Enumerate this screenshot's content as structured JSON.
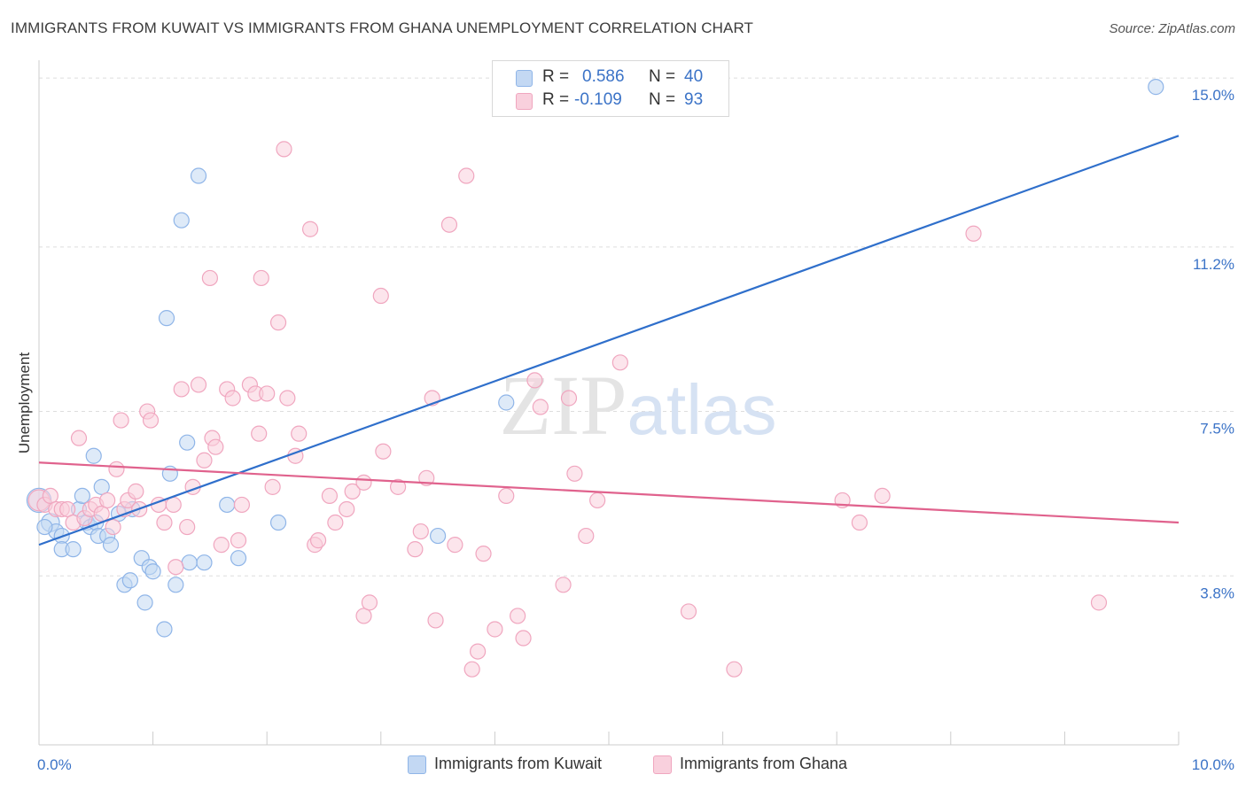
{
  "chart_data": {
    "type": "scatter",
    "title": "IMMIGRANTS FROM KUWAIT VS IMMIGRANTS FROM GHANA UNEMPLOYMENT CORRELATION CHART",
    "source": "Source: ZipAtlas.com",
    "ylabel": "Unemployment",
    "xlabel": "",
    "xlim": [
      0,
      10
    ],
    "ylim": [
      0,
      15.4
    ],
    "x_tick_labels": [
      "0.0%",
      "10.0%"
    ],
    "y_ticks": [
      3.8,
      7.5,
      11.2,
      15.0
    ],
    "y_tick_labels": [
      "3.8%",
      "7.5%",
      "11.2%",
      "15.0%"
    ],
    "watermark": "ZIPatlas",
    "legend": {
      "rows": [
        {
          "r_key": "R =",
          "r_value": "0.586",
          "n_key": "N =",
          "n_value": "40"
        },
        {
          "r_key": "R =",
          "r_value": "-0.109",
          "n_key": "N =",
          "n_value": "93"
        }
      ]
    },
    "series": [
      {
        "name": "Immigrants from Kuwait",
        "color": "#8fb5e8",
        "fill": "#c3d8f3",
        "line_color": "#2f6fcb",
        "trend": {
          "x": [
            0,
            10
          ],
          "y": [
            4.5,
            13.7
          ]
        },
        "points": [
          [
            0.0,
            5.5,
            16
          ],
          [
            0.1,
            5.0,
            12
          ],
          [
            0.15,
            4.8,
            10
          ],
          [
            0.2,
            4.7,
            10
          ],
          [
            0.2,
            4.4,
            10
          ],
          [
            0.3,
            4.4,
            10
          ],
          [
            0.35,
            5.3,
            10
          ],
          [
            0.38,
            5.6,
            10
          ],
          [
            0.42,
            5.0,
            10
          ],
          [
            0.45,
            4.9,
            10
          ],
          [
            0.48,
            6.5,
            10
          ],
          [
            0.5,
            5.0,
            10
          ],
          [
            0.52,
            4.7,
            10
          ],
          [
            0.55,
            5.8,
            10
          ],
          [
            0.6,
            4.7,
            10
          ],
          [
            0.63,
            4.5,
            10
          ],
          [
            0.7,
            5.2,
            10
          ],
          [
            0.75,
            3.6,
            10
          ],
          [
            0.8,
            3.7,
            10
          ],
          [
            0.82,
            5.3,
            10
          ],
          [
            0.9,
            4.2,
            10
          ],
          [
            0.93,
            3.2,
            10
          ],
          [
            0.97,
            4.0,
            10
          ],
          [
            1.0,
            3.9,
            10
          ],
          [
            1.1,
            2.6,
            10
          ],
          [
            1.15,
            6.1,
            10
          ],
          [
            1.12,
            9.6,
            10
          ],
          [
            1.2,
            3.6,
            10
          ],
          [
            1.25,
            11.8,
            10
          ],
          [
            1.3,
            6.8,
            10
          ],
          [
            1.32,
            4.1,
            10
          ],
          [
            1.4,
            12.8,
            10
          ],
          [
            1.45,
            4.1,
            10
          ],
          [
            1.65,
            5.4,
            10
          ],
          [
            1.75,
            4.2,
            10
          ],
          [
            2.1,
            5.0,
            10
          ],
          [
            3.5,
            4.7,
            10
          ],
          [
            4.1,
            7.7,
            10
          ],
          [
            9.8,
            14.8,
            10
          ],
          [
            0.05,
            4.9,
            10
          ]
        ]
      },
      {
        "name": "Immigrants from Ghana",
        "color": "#f0a6bf",
        "fill": "#f9d0dd",
        "line_color": "#e0628d",
        "trend": {
          "x": [
            0,
            10
          ],
          "y": [
            6.35,
            5.0
          ]
        },
        "points": [
          [
            0.0,
            5.5,
            14
          ],
          [
            0.05,
            5.4,
            10
          ],
          [
            0.1,
            5.6,
            10
          ],
          [
            0.15,
            5.3,
            10
          ],
          [
            0.2,
            5.3,
            10
          ],
          [
            0.25,
            5.3,
            10
          ],
          [
            0.3,
            5.0,
            10
          ],
          [
            0.35,
            6.9,
            10
          ],
          [
            0.4,
            5.1,
            10
          ],
          [
            0.45,
            5.3,
            10
          ],
          [
            0.5,
            5.4,
            10
          ],
          [
            0.55,
            5.2,
            10
          ],
          [
            0.6,
            5.5,
            10
          ],
          [
            0.65,
            4.9,
            10
          ],
          [
            0.68,
            6.2,
            10
          ],
          [
            0.72,
            7.3,
            10
          ],
          [
            0.75,
            5.3,
            10
          ],
          [
            0.78,
            5.5,
            10
          ],
          [
            0.85,
            5.7,
            10
          ],
          [
            0.88,
            5.3,
            10
          ],
          [
            0.95,
            7.5,
            10
          ],
          [
            0.98,
            7.3,
            10
          ],
          [
            1.05,
            5.4,
            10
          ],
          [
            1.1,
            5.0,
            10
          ],
          [
            1.18,
            5.4,
            10
          ],
          [
            1.2,
            4.0,
            10
          ],
          [
            1.25,
            8.0,
            10
          ],
          [
            1.3,
            4.9,
            10
          ],
          [
            1.35,
            5.8,
            10
          ],
          [
            1.4,
            8.1,
            10
          ],
          [
            1.45,
            6.4,
            10
          ],
          [
            1.5,
            10.5,
            10
          ],
          [
            1.52,
            6.9,
            10
          ],
          [
            1.55,
            6.7,
            10
          ],
          [
            1.6,
            4.5,
            10
          ],
          [
            1.65,
            8.0,
            10
          ],
          [
            1.7,
            7.8,
            10
          ],
          [
            1.75,
            4.6,
            10
          ],
          [
            1.78,
            5.4,
            10
          ],
          [
            1.85,
            8.1,
            10
          ],
          [
            1.9,
            7.9,
            10
          ],
          [
            1.93,
            7.0,
            10
          ],
          [
            1.95,
            10.5,
            10
          ],
          [
            2.0,
            7.9,
            10
          ],
          [
            2.05,
            5.8,
            10
          ],
          [
            2.1,
            9.5,
            10
          ],
          [
            2.15,
            13.4,
            10
          ],
          [
            2.18,
            7.8,
            10
          ],
          [
            2.25,
            6.5,
            10
          ],
          [
            2.28,
            7.0,
            10
          ],
          [
            2.38,
            11.6,
            10
          ],
          [
            2.42,
            4.5,
            10
          ],
          [
            2.45,
            4.6,
            10
          ],
          [
            2.55,
            5.6,
            10
          ],
          [
            2.6,
            5.0,
            10
          ],
          [
            2.7,
            5.3,
            10
          ],
          [
            2.75,
            5.7,
            10
          ],
          [
            2.85,
            2.9,
            10
          ],
          [
            2.9,
            3.2,
            10
          ],
          [
            2.85,
            5.9,
            10
          ],
          [
            3.0,
            10.1,
            10
          ],
          [
            3.02,
            6.6,
            10
          ],
          [
            3.15,
            5.8,
            10
          ],
          [
            3.3,
            4.4,
            10
          ],
          [
            3.35,
            4.8,
            10
          ],
          [
            3.4,
            6.0,
            10
          ],
          [
            3.45,
            7.8,
            10
          ],
          [
            3.48,
            2.8,
            10
          ],
          [
            3.6,
            11.7,
            10
          ],
          [
            3.65,
            4.5,
            10
          ],
          [
            3.75,
            12.8,
            10
          ],
          [
            3.8,
            1.7,
            10
          ],
          [
            3.85,
            2.1,
            10
          ],
          [
            3.9,
            4.3,
            10
          ],
          [
            4.0,
            2.6,
            10
          ],
          [
            4.1,
            5.6,
            10
          ],
          [
            4.2,
            2.9,
            10
          ],
          [
            4.25,
            2.4,
            10
          ],
          [
            4.35,
            8.2,
            10
          ],
          [
            4.4,
            7.6,
            10
          ],
          [
            4.6,
            3.6,
            10
          ],
          [
            4.65,
            7.8,
            10
          ],
          [
            4.7,
            6.1,
            10
          ],
          [
            4.8,
            4.7,
            10
          ],
          [
            4.9,
            5.5,
            10
          ],
          [
            5.1,
            8.6,
            10
          ],
          [
            5.7,
            3.0,
            10
          ],
          [
            6.1,
            1.7,
            10
          ],
          [
            7.05,
            5.5,
            10
          ],
          [
            7.2,
            5.0,
            10
          ],
          [
            7.4,
            5.6,
            10
          ],
          [
            8.2,
            11.5,
            10
          ],
          [
            9.3,
            3.2,
            10
          ]
        ]
      }
    ]
  }
}
